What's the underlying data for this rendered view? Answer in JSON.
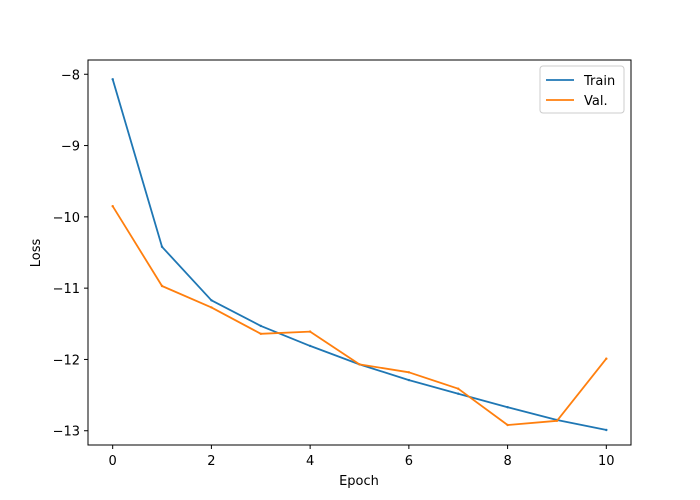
{
  "chart_data": {
    "type": "line",
    "xlabel": "Epoch",
    "ylabel": "Loss",
    "xlim": [
      -0.5,
      10.5
    ],
    "ylim": [
      -13.2,
      -7.8
    ],
    "xticks": [
      0,
      2,
      4,
      6,
      8,
      10
    ],
    "yticks": [
      -8,
      -9,
      -10,
      -11,
      -12,
      -13
    ],
    "tick_labels": {
      "x": [
        "0",
        "2",
        "4",
        "6",
        "8",
        "10"
      ],
      "y": [
        "−8",
        "−9",
        "−10",
        "−11",
        "−12",
        "−13"
      ]
    },
    "grid": false,
    "legend_placement": "top-right",
    "x": [
      0,
      1,
      2,
      3,
      4,
      5,
      6,
      7,
      8,
      9,
      10
    ],
    "series": [
      {
        "name": "Train",
        "color": "#1f77b4",
        "values": [
          -8.07,
          -10.42,
          -11.17,
          -11.53,
          -11.81,
          -12.07,
          -12.29,
          -12.48,
          -12.67,
          -12.85,
          -12.99
        ]
      },
      {
        "name": "Val.",
        "color": "#ff7f0e",
        "values": [
          -9.85,
          -10.97,
          -11.27,
          -11.64,
          -11.61,
          -12.07,
          -12.18,
          -12.41,
          -12.92,
          -12.86,
          -11.99
        ]
      }
    ]
  }
}
